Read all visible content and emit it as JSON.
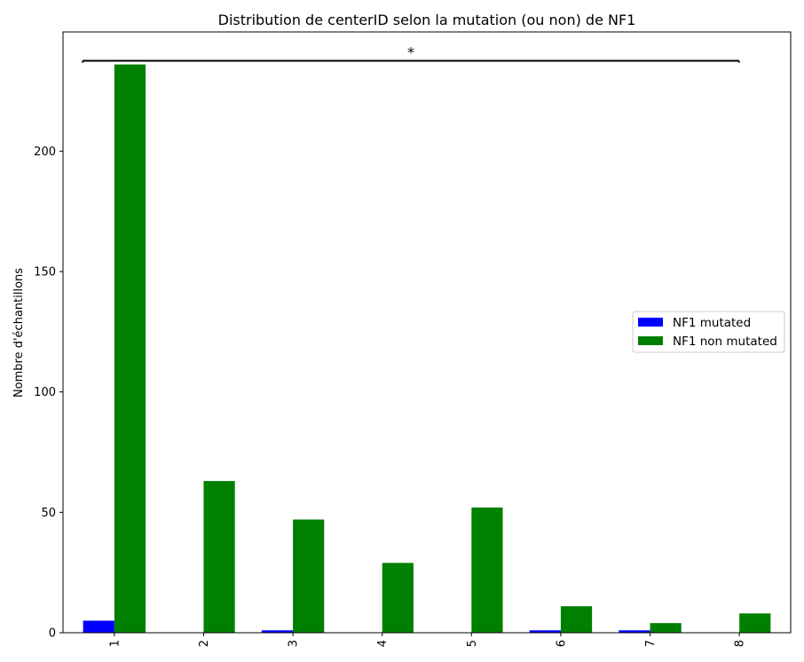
{
  "chart_data": {
    "type": "bar",
    "title": "Distribution de centerID selon la mutation (ou non) de NF1",
    "xlabel": "",
    "ylabel": "Nombre d'échantillons",
    "categories": [
      "1",
      "2",
      "3",
      "4",
      "5",
      "6",
      "7",
      "8"
    ],
    "series": [
      {
        "name": "NF1 mutated",
        "color": "#0000ff",
        "values": [
          5,
          0,
          1,
          0,
          0,
          1,
          1,
          0
        ]
      },
      {
        "name": "NF1 non mutated",
        "color": "#008000",
        "values": [
          236,
          63,
          47,
          29,
          52,
          11,
          4,
          8
        ]
      }
    ],
    "ylim": [
      0,
      249.5
    ],
    "yticks": [
      0,
      50,
      100,
      150,
      200
    ],
    "xtick_rotation": 90,
    "legend_position": "center-right",
    "grid": false,
    "annotation": {
      "text": "*",
      "bracket_value": 237.5
    }
  }
}
